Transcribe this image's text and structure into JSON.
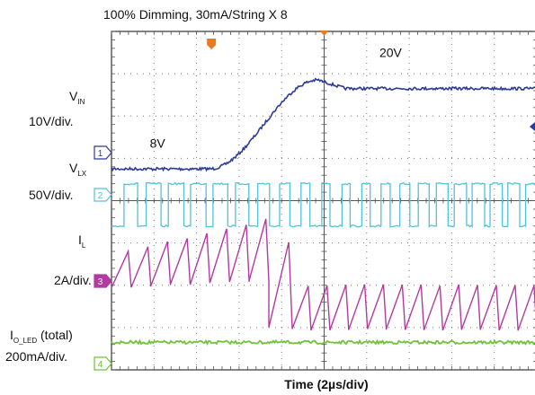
{
  "chart_data": {
    "type": "line",
    "title": "100% Dimming, 30mA/String X 8",
    "xlabel": "Time (2µs/div)",
    "x_divisions": 10,
    "y_divisions": 8,
    "grid": true,
    "channels": [
      {
        "id": "1",
        "label_main": "V",
        "label_sub": "IN",
        "scale": "10V/div.",
        "color": "#2c3a9a",
        "annotations": [
          {
            "text": "8V",
            "x_div": 0.9,
            "y_div": 2.75
          },
          {
            "text": "20V",
            "x_div": 6.3,
            "y_div": 0.6
          }
        ],
        "waveform": {
          "kind": "ramp",
          "low_y_div": 3.25,
          "high_y_div": 1.15,
          "settled_y_div": 1.35,
          "ramp_start_div": 2.3,
          "ramp_end_div": 5.5
        }
      },
      {
        "id": "2",
        "label_main": "V",
        "label_sub": "LX",
        "scale": "50V/div.",
        "color": "#4fc4d8",
        "waveform": {
          "kind": "switching",
          "low_y_div": 4.6,
          "high_y_div": 3.6,
          "period_div_start": 0.55,
          "period_div_end": 0.4
        }
      },
      {
        "id": "3",
        "label_main": "I",
        "label_sub": "L",
        "scale": "2A/div.",
        "color": "#b23aa0",
        "waveform": {
          "kind": "sawtooth",
          "segments": [
            {
              "x_start_div": 0.0,
              "x_end_div": 3.7,
              "low_y_div": 6.05,
              "high_y_div": 5.2,
              "peak_growth": true
            },
            {
              "x_start_div": 3.7,
              "x_end_div": 4.25,
              "low_y_div": 7.0,
              "high_y_div": 5.9
            },
            {
              "x_start_div": 4.25,
              "x_end_div": 10.0,
              "low_y_div": 7.05,
              "high_y_div": 6.0
            }
          ]
        }
      },
      {
        "id": "4",
        "label_main": "I",
        "label_sub": "O_LED",
        "label_suffix": " (total)",
        "scale": "200mA/div.",
        "color": "#6fc33a",
        "waveform": {
          "kind": "flat",
          "y_div": 7.35
        }
      }
    ],
    "markers": {
      "trigger_top_div": 2.35,
      "center_top_div": 5.0,
      "right_arrow_y_div": 2.25,
      "trigger_color": "#e97a1f",
      "right_arrow_color": "#2c3a9a"
    }
  }
}
